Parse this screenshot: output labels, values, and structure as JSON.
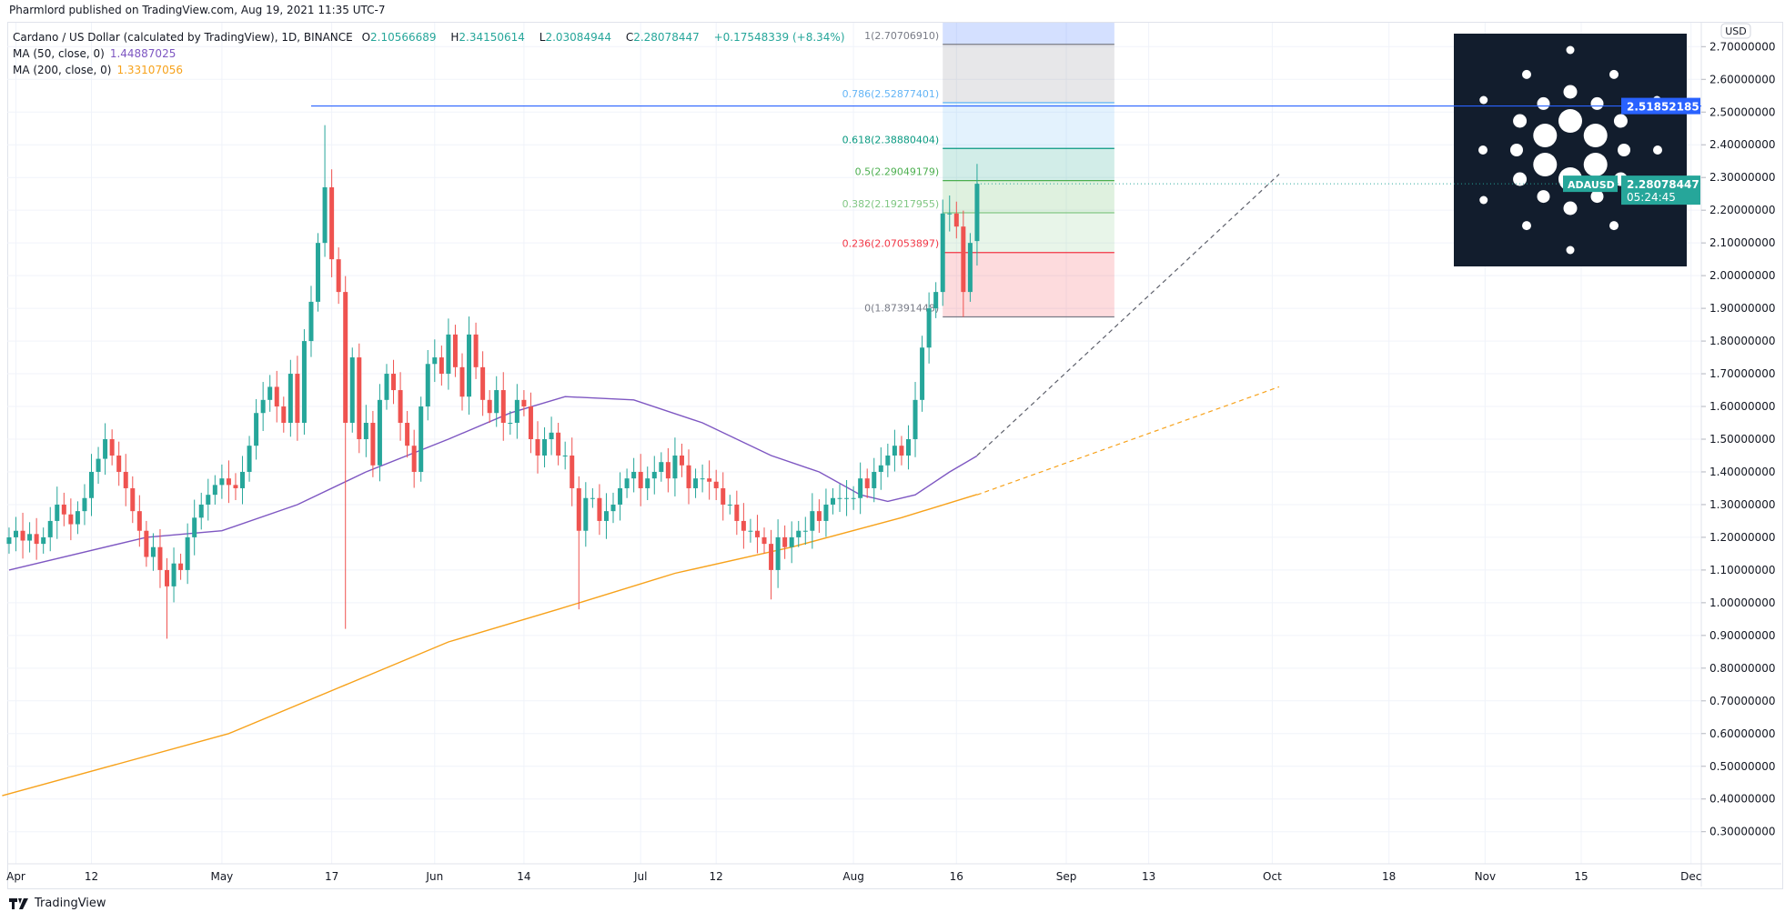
{
  "published": "Pharmlord published on TradingView.com, Aug 19, 2021 11:35 UTC-7",
  "legend": {
    "symbol": "Cardano / US Dollar (calculated by TradingView), 1D, BINANCE",
    "o_label": "O",
    "o": "2.10566689",
    "h_label": "H",
    "h": "2.34150614",
    "l_label": "L",
    "l": "2.03084944",
    "c_label": "C",
    "c": "2.28078447",
    "change": "+0.17548339 (+8.34%)",
    "ma50_label": "MA (50, close, 0)",
    "ma50": "1.44887025",
    "ma200_label": "MA (200, close, 0)",
    "ma200": "1.33107056"
  },
  "price_axis": {
    "currency": "USD",
    "ticks": [
      "2.70000000",
      "2.60000000",
      "2.50000000",
      "2.40000000",
      "2.30000000",
      "2.20000000",
      "2.10000000",
      "2.00000000",
      "1.90000000",
      "1.80000000",
      "1.70000000",
      "1.60000000",
      "1.50000000",
      "1.40000000",
      "1.30000000",
      "1.20000000",
      "1.10000000",
      "1.00000000",
      "0.90000000",
      "0.80000000",
      "0.70000000",
      "0.60000000",
      "0.50000000",
      "0.40000000",
      "0.30000000"
    ]
  },
  "time_axis": {
    "ticks": [
      [
        "2021-04-01",
        "Apr"
      ],
      [
        "2021-04-12",
        "12"
      ],
      [
        "2021-05-01",
        "May"
      ],
      [
        "2021-05-17",
        "17"
      ],
      [
        "2021-06-01",
        "Jun"
      ],
      [
        "2021-06-14",
        "14"
      ],
      [
        "2021-07-01",
        "Jul"
      ],
      [
        "2021-07-12",
        "12"
      ],
      [
        "2021-08-01",
        "Aug"
      ],
      [
        "2021-08-16",
        "16"
      ],
      [
        "2021-09-01",
        "Sep"
      ],
      [
        "2021-09-13",
        "13"
      ],
      [
        "2021-10-01",
        "Oct"
      ],
      [
        "2021-10-18",
        "18"
      ],
      [
        "2021-11-01",
        "Nov"
      ],
      [
        "2021-11-15",
        "15"
      ],
      [
        "2021-12-01",
        "Dec"
      ]
    ]
  },
  "chart_data": {
    "type": "candlestick",
    "symbol": "ADAUSD",
    "start_date": "2021-03-31",
    "ylim": [
      0.25,
      2.75
    ],
    "grid": true,
    "colors": {
      "up": "#26a69a",
      "down": "#ef5350",
      "ma50": "#7e57c2",
      "ma200": "#f7a21b",
      "hline": "#2962ff"
    },
    "close": [
      1.2,
      1.22,
      1.19,
      1.21,
      1.18,
      1.2,
      1.25,
      1.3,
      1.27,
      1.24,
      1.28,
      1.32,
      1.4,
      1.44,
      1.5,
      1.45,
      1.4,
      1.35,
      1.28,
      1.22,
      1.14,
      1.17,
      1.1,
      1.05,
      1.12,
      1.1,
      1.2,
      1.26,
      1.3,
      1.33,
      1.36,
      1.38,
      1.36,
      1.35,
      1.4,
      1.48,
      1.58,
      1.62,
      1.66,
      1.6,
      1.55,
      1.7,
      1.55,
      1.8,
      1.92,
      2.1,
      2.27,
      2.05,
      1.95,
      1.55,
      1.75,
      1.5,
      1.55,
      1.42,
      1.62,
      1.7,
      1.65,
      1.55,
      1.48,
      1.4,
      1.6,
      1.73,
      1.75,
      1.7,
      1.82,
      1.72,
      1.63,
      1.82,
      1.72,
      1.62,
      1.58,
      1.65,
      1.55,
      1.55,
      1.62,
      1.6,
      1.5,
      1.45,
      1.5,
      1.52,
      1.45,
      1.45,
      1.35,
      1.22,
      1.32,
      1.32,
      1.25,
      1.28,
      1.3,
      1.35,
      1.38,
      1.4,
      1.35,
      1.38,
      1.4,
      1.43,
      1.38,
      1.45,
      1.42,
      1.35,
      1.38,
      1.38,
      1.37,
      1.35,
      1.3,
      1.3,
      1.25,
      1.22,
      1.22,
      1.2,
      1.18,
      1.1,
      1.2,
      1.17,
      1.2,
      1.22,
      1.22,
      1.28,
      1.25,
      1.3,
      1.32,
      1.32,
      1.32,
      1.32,
      1.38,
      1.35,
      1.4,
      1.42,
      1.45,
      1.48,
      1.45,
      1.5,
      1.62,
      1.78,
      1.9,
      1.95,
      2.19,
      2.19,
      2.15,
      1.95,
      2.1,
      2.28078447
    ],
    "extremes": [
      {
        "date": "2021-04-23",
        "low": 0.89
      },
      {
        "date": "2021-05-16",
        "high": 2.46
      },
      {
        "date": "2021-05-19",
        "low": 0.92
      },
      {
        "date": "2021-06-22",
        "low": 0.98
      },
      {
        "date": "2021-07-20",
        "low": 1.01
      },
      {
        "date": "2021-08-17",
        "low": 1.8739
      },
      {
        "date": "2021-08-19",
        "open": 2.10566689,
        "high": 2.34150614,
        "low": 2.03084944
      }
    ],
    "ma50": [
      [
        "2021-03-31",
        1.1
      ],
      [
        "2021-04-20",
        1.2
      ],
      [
        "2021-05-01",
        1.22
      ],
      [
        "2021-05-12",
        1.3
      ],
      [
        "2021-05-22",
        1.4
      ],
      [
        "2021-06-03",
        1.5
      ],
      [
        "2021-06-12",
        1.58
      ],
      [
        "2021-06-20",
        1.63
      ],
      [
        "2021-06-30",
        1.62
      ],
      [
        "2021-07-10",
        1.55
      ],
      [
        "2021-07-20",
        1.45
      ],
      [
        "2021-07-27",
        1.4
      ],
      [
        "2021-08-02",
        1.33
      ],
      [
        "2021-08-06",
        1.31
      ],
      [
        "2021-08-10",
        1.33
      ],
      [
        "2021-08-15",
        1.4
      ],
      [
        "2021-08-19",
        1.44887025
      ]
    ],
    "ma50_projection": [
      [
        "2021-08-19",
        1.45
      ],
      [
        "2021-10-02",
        2.31
      ]
    ],
    "ma200": [
      [
        "2021-03-30",
        0.41
      ],
      [
        "2021-05-02",
        0.6
      ],
      [
        "2021-05-18",
        0.74
      ],
      [
        "2021-06-03",
        0.88
      ],
      [
        "2021-06-19",
        0.98
      ],
      [
        "2021-07-06",
        1.09
      ],
      [
        "2021-07-23",
        1.17
      ],
      [
        "2021-08-08",
        1.26
      ],
      [
        "2021-08-19",
        1.33107056
      ]
    ],
    "ma200_projection": [
      [
        "2021-08-19",
        1.33
      ],
      [
        "2021-10-02",
        1.66
      ]
    ],
    "horizontal_line": {
      "start": "2021-05-14",
      "value": 2.51852185,
      "label": "2.51852185"
    },
    "last_price": {
      "symbol": "ADAUSD",
      "value": 2.28078447,
      "label": "2.28078447",
      "countdown": "05:24:45"
    },
    "fibonacci": {
      "start": "2021-08-14",
      "end": "2021-09-08",
      "levels": [
        {
          "ratio": "1",
          "value": 2.7070691,
          "label": "1(2.70706910)",
          "color": "#787b86",
          "fill": "#2962ff"
        },
        {
          "ratio": "0.786",
          "value": 2.52877401,
          "label": "0.786(2.52877401)",
          "color": "#64b5f6",
          "fill": "#787b86"
        },
        {
          "ratio": "0.618",
          "value": 2.38880404,
          "label": "0.618(2.38880404)",
          "color": "#089981",
          "fill": "#64b5f6"
        },
        {
          "ratio": "0.5",
          "value": 2.29049179,
          "label": "0.5(2.29049179)",
          "color": "#4caf50",
          "fill": "#089981"
        },
        {
          "ratio": "0.382",
          "value": 2.19217955,
          "label": "0.382(2.19217955)",
          "color": "#81c784",
          "fill": "#4caf50"
        },
        {
          "ratio": "0.236",
          "value": 2.07053897,
          "label": "0.236(2.07053897)",
          "color": "#f23645",
          "fill": "#81c784"
        },
        {
          "ratio": "0",
          "value": 1.87391448,
          "label": "0(1.87391448)",
          "color": "#787b86",
          "fill": "#f23645"
        }
      ]
    }
  },
  "logo_overlay": {
    "icon": "cardano-logo-icon",
    "background": "#121d2d"
  },
  "footer": {
    "brand": "TradingView",
    "icon": "tradingview-logo-icon"
  }
}
